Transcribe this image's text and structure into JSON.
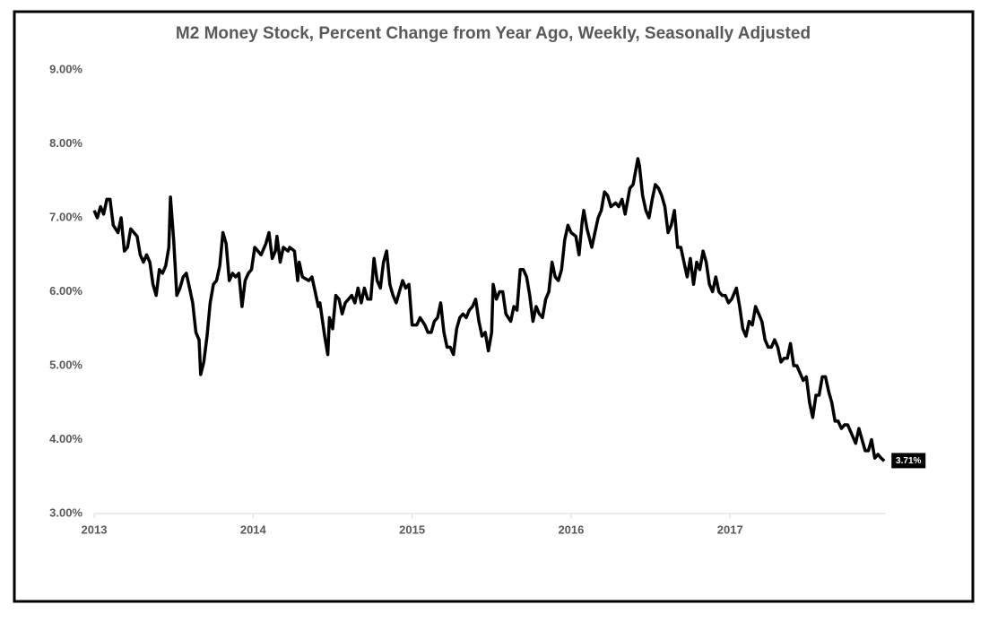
{
  "chart_data": {
    "type": "line",
    "title": "M2 Money Stock, Percent Change from Year Ago, Weekly, Seasonally Adjusted",
    "xlim": [
      2013,
      2017.98
    ],
    "xticks": [
      2013,
      2014,
      2015,
      2016,
      2017
    ],
    "ylim": [
      3,
      9
    ],
    "yticks": [
      {
        "value": 3,
        "label": "3.00%"
      },
      {
        "value": 4,
        "label": "4.00%"
      },
      {
        "value": 5,
        "label": "5.00%"
      },
      {
        "value": 6,
        "label": "6.00%"
      },
      {
        "value": 7,
        "label": "7.00%"
      },
      {
        "value": 8,
        "label": "8.00%"
      },
      {
        "value": 9,
        "label": "9.00%"
      }
    ],
    "grid": false,
    "series": [
      {
        "color": "#000000",
        "x": [
          2013.0,
          2013.02,
          2013.04,
          2013.06,
          2013.08,
          2013.1,
          2013.12,
          2013.15,
          2013.17,
          2013.19,
          2013.21,
          2013.23,
          2013.27,
          2013.29,
          2013.31,
          2013.33,
          2013.35,
          2013.37,
          2013.39,
          2013.41,
          2013.43,
          2013.45,
          2013.47,
          2013.48,
          2013.5,
          2013.52,
          2013.54,
          2013.56,
          2013.58,
          2013.6,
          2013.62,
          2013.64,
          2013.66,
          2013.67,
          2013.69,
          2013.71,
          2013.73,
          2013.75,
          2013.77,
          2013.79,
          2013.81,
          2013.83,
          2013.85,
          2013.87,
          2013.89,
          2013.91,
          2013.93,
          2013.95,
          2013.97,
          2013.99,
          2014.01,
          2014.05,
          2014.08,
          2014.1,
          2014.12,
          2014.14,
          2014.15,
          2014.17,
          2014.19,
          2014.22,
          2014.23,
          2014.26,
          2014.28,
          2014.29,
          2014.31,
          2014.35,
          2014.37,
          2014.39,
          2014.41,
          2014.42,
          2014.45,
          2014.47,
          2014.48,
          2014.5,
          2014.52,
          2014.54,
          2014.56,
          2014.58,
          2014.6,
          2014.62,
          2014.64,
          2014.66,
          2014.68,
          2014.7,
          2014.72,
          2014.74,
          2014.76,
          2014.78,
          2014.8,
          2014.82,
          2014.84,
          2014.86,
          2014.88,
          2014.9,
          2014.92,
          2014.94,
          2014.96,
          2014.98,
          2015.0,
          2015.03,
          2015.05,
          2015.08,
          2015.1,
          2015.12,
          2015.14,
          2015.16,
          2015.18,
          2015.2,
          2015.22,
          2015.24,
          2015.26,
          2015.28,
          2015.3,
          2015.32,
          2015.34,
          2015.36,
          2015.38,
          2015.4,
          2015.42,
          2015.44,
          2015.46,
          2015.48,
          2015.5,
          2015.51,
          2015.53,
          2015.55,
          2015.57,
          2015.59,
          2015.62,
          2015.64,
          2015.66,
          2015.68,
          2015.7,
          2015.72,
          2015.74,
          2015.76,
          2015.78,
          2015.8,
          2015.82,
          2015.84,
          2015.86,
          2015.88,
          2015.9,
          2015.92,
          2015.94,
          2015.96,
          2015.98,
          2016.0,
          2016.03,
          2016.05,
          2016.07,
          2016.08,
          2016.1,
          2016.13,
          2016.15,
          2016.17,
          2016.19,
          2016.21,
          2016.23,
          2016.25,
          2016.28,
          2016.3,
          2016.32,
          2016.34,
          2016.37,
          2016.39,
          2016.42,
          2016.43,
          2016.45,
          2016.47,
          2016.49,
          2016.51,
          2016.53,
          2016.55,
          2016.57,
          2016.59,
          2016.61,
          2016.63,
          2016.65,
          2016.67,
          2016.69,
          2016.71,
          2016.73,
          2016.75,
          2016.77,
          2016.79,
          2016.81,
          2016.83,
          2016.85,
          2016.87,
          2016.89,
          2016.91,
          2016.93,
          2016.95,
          2016.97,
          2016.99,
          2017.01,
          2017.04,
          2017.06,
          2017.08,
          2017.1,
          2017.12,
          2017.14,
          2017.16,
          2017.18,
          2017.2,
          2017.22,
          2017.24,
          2017.26,
          2017.28,
          2017.3,
          2017.32,
          2017.34,
          2017.36,
          2017.38,
          2017.4,
          2017.42,
          2017.44,
          2017.46,
          2017.48,
          2017.5,
          2017.52,
          2017.54,
          2017.56,
          2017.58,
          2017.6,
          2017.62,
          2017.64,
          2017.66,
          2017.68,
          2017.7,
          2017.72,
          2017.74,
          2017.76,
          2017.78,
          2017.79,
          2017.81,
          2017.83,
          2017.85,
          2017.87,
          2017.89,
          2017.91,
          2017.93,
          2017.95,
          2017.97
        ],
        "values": [
          7.1,
          7.0,
          7.15,
          7.05,
          7.25,
          7.25,
          6.9,
          6.8,
          7.0,
          6.55,
          6.6,
          6.85,
          6.75,
          6.5,
          6.4,
          6.5,
          6.4,
          6.1,
          5.95,
          6.3,
          6.25,
          6.35,
          6.6,
          7.28,
          6.7,
          5.95,
          6.05,
          6.2,
          6.25,
          6.05,
          5.85,
          5.45,
          5.35,
          4.88,
          5.05,
          5.4,
          5.85,
          6.1,
          6.15,
          6.35,
          6.8,
          6.65,
          6.15,
          6.25,
          6.2,
          6.25,
          5.8,
          6.15,
          6.25,
          6.3,
          6.6,
          6.5,
          6.65,
          6.8,
          6.45,
          6.55,
          6.75,
          6.4,
          6.6,
          6.55,
          6.6,
          6.55,
          6.15,
          6.4,
          6.2,
          6.15,
          6.2,
          6.0,
          5.8,
          5.85,
          5.4,
          5.15,
          5.65,
          5.5,
          5.95,
          5.9,
          5.7,
          5.85,
          5.9,
          5.95,
          5.85,
          6.05,
          5.85,
          6.05,
          5.9,
          5.9,
          6.45,
          6.15,
          6.05,
          6.4,
          6.55,
          6.1,
          5.95,
          5.85,
          6.0,
          6.15,
          6.05,
          6.1,
          5.55,
          5.55,
          5.65,
          5.55,
          5.45,
          5.45,
          5.6,
          5.65,
          5.85,
          5.45,
          5.25,
          5.25,
          5.15,
          5.5,
          5.65,
          5.7,
          5.65,
          5.75,
          5.8,
          5.9,
          5.6,
          5.4,
          5.45,
          5.2,
          5.45,
          6.1,
          5.9,
          6.0,
          6.0,
          5.7,
          5.6,
          5.8,
          5.75,
          6.3,
          6.3,
          6.2,
          5.95,
          5.6,
          5.8,
          5.7,
          5.65,
          5.9,
          6.0,
          6.4,
          6.2,
          6.15,
          6.3,
          6.7,
          6.9,
          6.8,
          6.75,
          6.5,
          6.95,
          7.1,
          6.85,
          6.6,
          6.8,
          7.0,
          7.1,
          7.35,
          7.3,
          7.15,
          7.2,
          7.15,
          7.25,
          7.05,
          7.4,
          7.45,
          7.8,
          7.7,
          7.3,
          7.1,
          7.0,
          7.25,
          7.45,
          7.4,
          7.3,
          7.15,
          6.8,
          6.9,
          7.1,
          6.6,
          6.6,
          6.4,
          6.2,
          6.45,
          6.1,
          6.4,
          6.3,
          6.55,
          6.4,
          6.1,
          6.0,
          6.2,
          6.0,
          5.95,
          5.95,
          5.85,
          5.9,
          6.05,
          5.8,
          5.5,
          5.4,
          5.6,
          5.55,
          5.8,
          5.7,
          5.6,
          5.35,
          5.25,
          5.25,
          5.35,
          5.25,
          5.05,
          5.1,
          5.1,
          5.3,
          5.0,
          5.0,
          4.9,
          4.8,
          4.85,
          4.5,
          4.3,
          4.6,
          4.6,
          4.85,
          4.85,
          4.65,
          4.5,
          4.25,
          4.25,
          4.15,
          4.2,
          4.2,
          4.1,
          4.0,
          3.95,
          4.15,
          4.0,
          3.85,
          3.85,
          4.0,
          3.75,
          3.8,
          3.75,
          3.71
        ]
      }
    ],
    "last_value_label": "3.71%"
  }
}
